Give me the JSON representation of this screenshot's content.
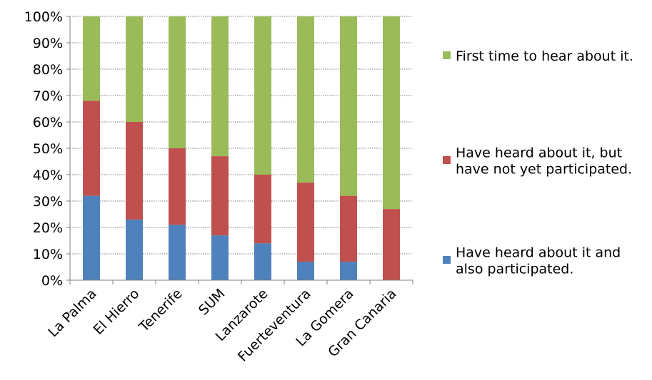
{
  "chart_data": {
    "type": "bar",
    "stacked": true,
    "percent_stacked": true,
    "categories": [
      "La Palma",
      "El Hierro",
      "Tenerife",
      "SUM",
      "Lanzarote",
      "Fuerteventura",
      "La Gomera",
      "Gran Canaria"
    ],
    "series": [
      {
        "name": "Have heard about it and also participated.",
        "color": "#4f81bd",
        "values": [
          32,
          23,
          21,
          17,
          14,
          7,
          7,
          0
        ]
      },
      {
        "name": "Have heard about it, but have not yet participated.",
        "color": "#c0504d",
        "values": [
          36,
          37,
          29,
          30,
          26,
          30,
          25,
          27
        ]
      },
      {
        "name": "First time to hear about it.",
        "color": "#9bbb59",
        "values": [
          32,
          40,
          50,
          53,
          60,
          63,
          68,
          73
        ]
      }
    ],
    "ylim": [
      0,
      100
    ],
    "yticks": [
      "0%",
      "10%",
      "20%",
      "30%",
      "40%",
      "50%",
      "60%",
      "70%",
      "80%",
      "90%",
      "100%"
    ],
    "grid": true,
    "legend_position": "right",
    "legend_order": [
      [
        "First time to hear about it."
      ],
      [
        "Have heard about it, but",
        "have not yet participated."
      ],
      [
        "Have heard about it and",
        "also participated."
      ]
    ]
  }
}
